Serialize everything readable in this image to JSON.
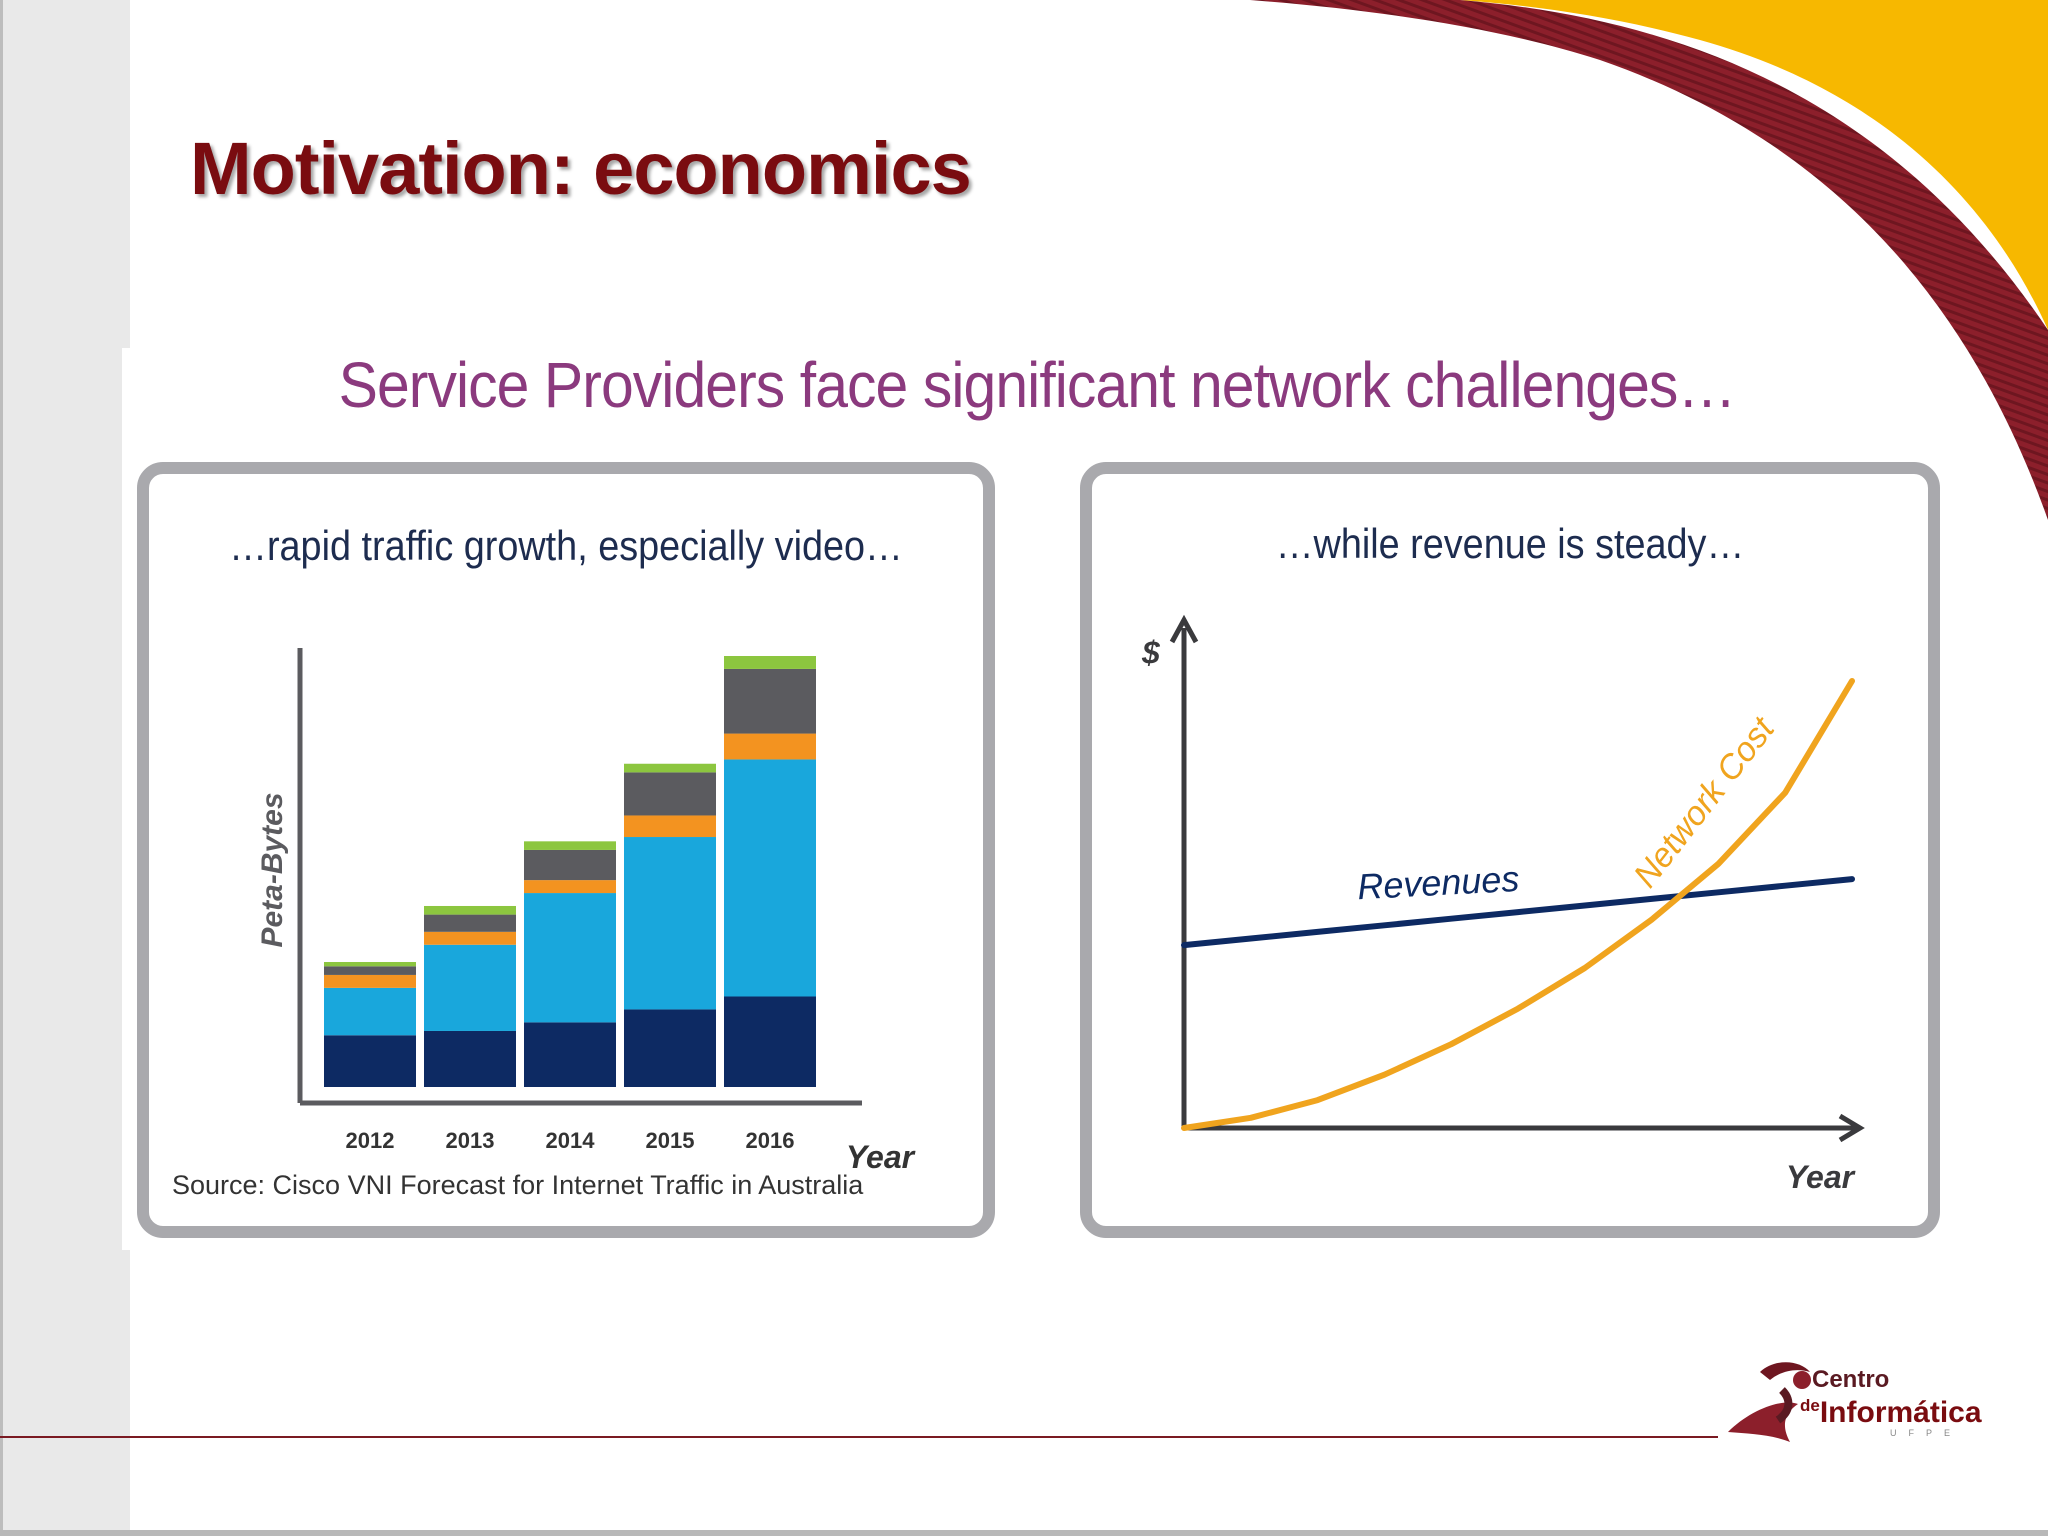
{
  "slide": {
    "title": "Motivation: economics",
    "headline": "Service Providers face significant network challenges…",
    "colors": {
      "title": "#7a0c10",
      "headline": "#8b3a7e",
      "accent_gold": "#f7b800",
      "accent_maroon": "#8c1f2b"
    }
  },
  "left_panel": {
    "title": "…rapid traffic growth, especially video…",
    "source": "Source: Cisco VNI Forecast for Internet Traffic in Australia"
  },
  "right_panel": {
    "title": "…while revenue is steady…"
  },
  "logo": {
    "line1": "Centro",
    "line2_prefix": "de",
    "line2": "Informática",
    "line3": "UFPE"
  },
  "chart_data": [
    {
      "type": "bar",
      "stacked": true,
      "categories": [
        "2012",
        "2013",
        "2014",
        "2015",
        "2016"
      ],
      "xlabel": "Year",
      "ylabel": "Peta-Bytes",
      "ylim": [
        0,
        100
      ],
      "series": [
        {
          "color": "#0d2a63",
          "values": [
            12,
            13,
            15,
            18,
            21
          ]
        },
        {
          "color": "#19a7dc",
          "values": [
            11,
            20,
            30,
            40,
            55
          ]
        },
        {
          "color": "#f39320",
          "values": [
            3,
            3,
            3,
            5,
            6
          ]
        },
        {
          "color": "#5b5b5f",
          "values": [
            2,
            4,
            7,
            10,
            15
          ]
        },
        {
          "color": "#8cc63f",
          "values": [
            1,
            2,
            2,
            2,
            3
          ]
        }
      ]
    },
    {
      "type": "line",
      "xlabel": "Year",
      "ylabel": "$",
      "x": [
        0,
        1,
        2,
        3,
        4,
        5,
        6,
        7,
        8,
        9,
        10
      ],
      "ylim": [
        0,
        100
      ],
      "series": [
        {
          "name": "Revenues",
          "color": "#0d2a63",
          "values": [
            36,
            37.3,
            38.6,
            39.9,
            41.2,
            42.5,
            43.8,
            45.1,
            46.4,
            47.7,
            49
          ]
        },
        {
          "name": "Network Cost",
          "color": "#f0a41e",
          "values": [
            0,
            2,
            5.5,
            10.5,
            16.5,
            23.5,
            31.5,
            41,
            52,
            66,
            88
          ]
        }
      ]
    }
  ]
}
